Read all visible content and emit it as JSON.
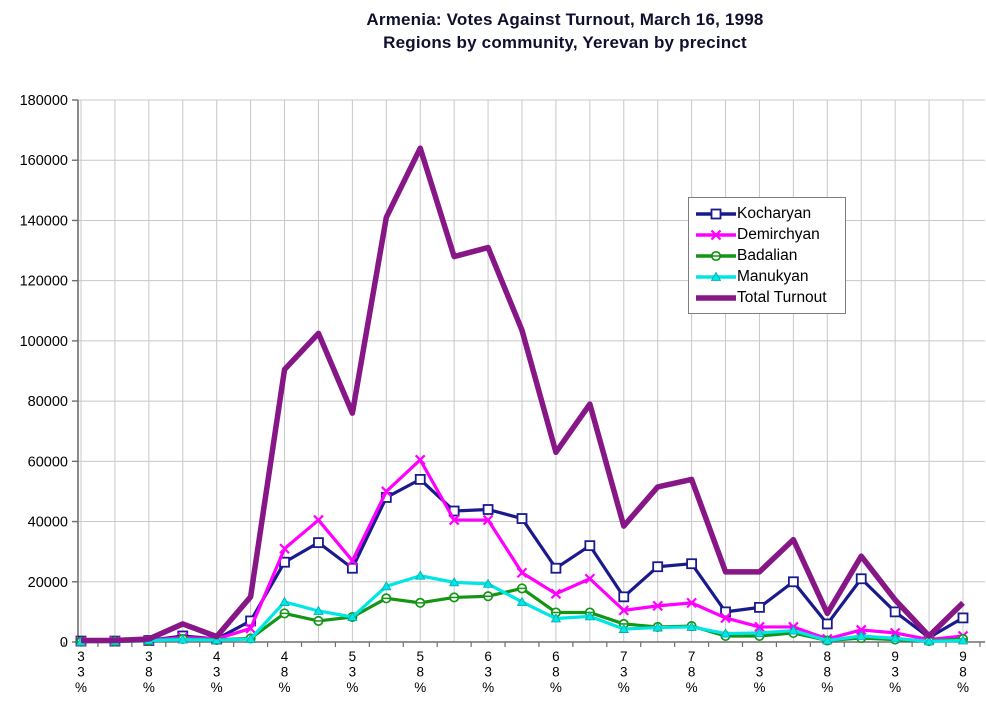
{
  "chart_data": {
    "type": "line",
    "title": "Armenia: Votes Against Turnout, March 16, 1998",
    "subtitle": "Regions by community, Yerevan by precinct",
    "xlabel": "",
    "ylabel": "",
    "categories": [
      "33%",
      "35.5%",
      "38%",
      "40.5%",
      "43%",
      "45.5%",
      "48%",
      "50.5%",
      "53%",
      "55.5%",
      "58%",
      "60.5%",
      "63%",
      "65.5%",
      "68%",
      "70.5%",
      "73%",
      "75.5%",
      "78%",
      "80.5%",
      "83%",
      "85.5%",
      "88%",
      "90.5%",
      "93%",
      "95.5%",
      "98%"
    ],
    "x_tick_labels_shown": [
      "33%",
      "38%",
      "43%",
      "48%",
      "53%",
      "58%",
      "63%",
      "68%",
      "73%",
      "78%",
      "83%",
      "88%",
      "93%",
      "98%"
    ],
    "x_label_style": "vertical-stacked-digits",
    "y_axis": {
      "min": 0,
      "max": 180000,
      "step": 20000
    },
    "grid": "both",
    "legend_position": "inside-upper-right",
    "series": [
      {
        "name": "Kocharyan",
        "color": "#1A1A8C",
        "marker": "square",
        "line_width": 3.2,
        "values": [
          300,
          300,
          500,
          2000,
          1000,
          7000,
          26500,
          33000,
          24500,
          48000,
          54000,
          43500,
          44000,
          41000,
          24500,
          32000,
          15000,
          25000,
          26000,
          10000,
          11500,
          20000,
          6000,
          21000,
          10000,
          1500,
          8000
        ]
      },
      {
        "name": "Demirchyan",
        "color": "#FF00FF",
        "marker": "x",
        "line_width": 3.2,
        "values": [
          200,
          300,
          500,
          1500,
          1000,
          4500,
          31000,
          40500,
          27000,
          50000,
          60500,
          40500,
          40500,
          23000,
          16000,
          21000,
          10500,
          12000,
          13000,
          8000,
          5000,
          5000,
          1000,
          4000,
          3000,
          800,
          2000
        ]
      },
      {
        "name": "Badalian",
        "color": "#159515",
        "marker": "circle",
        "line_width": 3.2,
        "values": [
          100,
          200,
          400,
          1000,
          700,
          1200,
          9500,
          7000,
          8300,
          14500,
          13000,
          14800,
          15200,
          17800,
          9800,
          9800,
          6000,
          5000,
          5300,
          2000,
          2000,
          3000,
          500,
          1300,
          800,
          300,
          1000
        ]
      },
      {
        "name": "Manukyan",
        "color": "#00E6E6",
        "marker": "triangle",
        "line_width": 3.2,
        "values": [
          100,
          200,
          500,
          800,
          600,
          1000,
          13300,
          10300,
          8300,
          18500,
          22000,
          19800,
          19300,
          13300,
          7800,
          8500,
          4300,
          4800,
          5000,
          2800,
          3000,
          3800,
          500,
          2000,
          1200,
          200,
          500
        ]
      },
      {
        "name": "Total Turnout",
        "color": "#871787",
        "marker": "none",
        "line_width": 5.5,
        "values": [
          500,
          500,
          1000,
          6000,
          1800,
          15000,
          90500,
          102500,
          76000,
          141000,
          164000,
          128000,
          131000,
          103500,
          63000,
          79000,
          38500,
          51500,
          54000,
          23300,
          23300,
          34000,
          9500,
          28500,
          14000,
          2000,
          13000
        ]
      }
    ]
  },
  "colors": {
    "background": "#FFFFFF",
    "grid": "#C8C8C8",
    "axis": "#6E6E6E",
    "tick_text": "#000000",
    "title_text": "#10102E",
    "legend_border": "#7D7D7D"
  }
}
